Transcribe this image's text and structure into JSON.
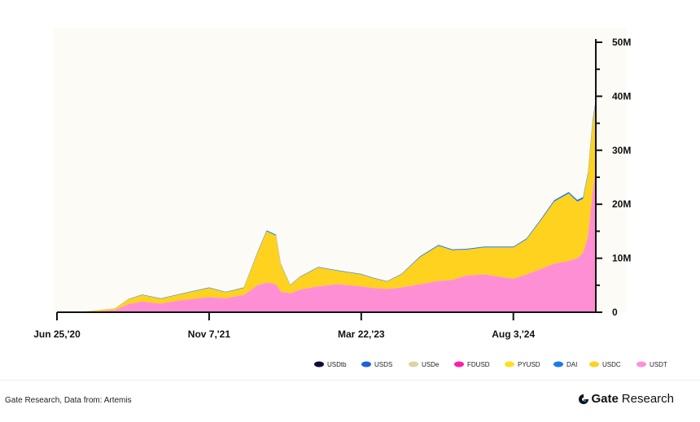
{
  "chart_data": {
    "type": "area",
    "stacked": true,
    "x_ticks": [
      "Jun 25,'20",
      "Nov 7,'21",
      "Mar 22,'23",
      "Aug 3,'24"
    ],
    "x_range": [
      "2020-06-25",
      "2025-05-01"
    ],
    "y_ticks": [
      "0",
      "10M",
      "20M",
      "30M",
      "40M",
      "50M"
    ],
    "ylim": [
      0,
      50000000
    ],
    "y_axis_side": "right",
    "grid": false,
    "legend_position": "bottom-right",
    "legend": [
      {
        "name": "USDtb",
        "color": "#0e0b3d"
      },
      {
        "name": "USDS",
        "color": "#1e63d6"
      },
      {
        "name": "USDe",
        "color": "#d9d3a8"
      },
      {
        "name": "FDUSD",
        "color": "#ff1fa8"
      },
      {
        "name": "PYUSD",
        "color": "#ffe01a"
      },
      {
        "name": "DAI",
        "color": "#1b7ae6"
      },
      {
        "name": "USDC",
        "color": "#ffd21f"
      },
      {
        "name": "USDT",
        "color": "#ff8fd4"
      }
    ],
    "x": [
      "2020-06-25",
      "2020-10-01",
      "2021-01-01",
      "2021-02-15",
      "2021-04-01",
      "2021-06-01",
      "2021-08-01",
      "2021-11-07",
      "2022-01-01",
      "2022-03-01",
      "2022-04-15",
      "2022-05-15",
      "2022-06-15",
      "2022-07-01",
      "2022-08-01",
      "2022-09-01",
      "2022-11-01",
      "2023-01-01",
      "2023-03-22",
      "2023-05-01",
      "2023-06-15",
      "2023-08-01",
      "2023-10-01",
      "2023-12-01",
      "2024-01-15",
      "2024-03-01",
      "2024-05-01",
      "2024-08-03",
      "2024-09-15",
      "2024-11-01",
      "2024-12-15",
      "2025-02-01",
      "2025-03-01",
      "2025-03-20",
      "2025-04-05",
      "2025-04-20",
      "2025-05-01"
    ],
    "series": [
      {
        "name": "USDT",
        "color": "#ff8fd4",
        "values": [
          0,
          50000,
          400000,
          1500000,
          2000000,
          1600000,
          2200000,
          2800000,
          2600000,
          3200000,
          5000000,
          5500000,
          5200000,
          3800000,
          3500000,
          4200000,
          4800000,
          5200000,
          4800000,
          4500000,
          4300000,
          4600000,
          5200000,
          5800000,
          6000000,
          6800000,
          7000000,
          6200000,
          7000000,
          8000000,
          9000000,
          9500000,
          10000000,
          11000000,
          14000000,
          22000000,
          27000000
        ]
      },
      {
        "name": "USDC",
        "color": "#ffd21f",
        "values": [
          0,
          100000,
          300000,
          900000,
          1200000,
          900000,
          1100000,
          1700000,
          1100000,
          1300000,
          6000000,
          9500000,
          9000000,
          5000000,
          1500000,
          2300000,
          3500000,
          2500000,
          2200000,
          1800000,
          1400000,
          2400000,
          5000000,
          6500000,
          5500000,
          4800000,
          5000000,
          5800000,
          6500000,
          9000000,
          11500000,
          12500000,
          10500000,
          10000000,
          11500000,
          13000000,
          12000000
        ]
      },
      {
        "name": "DAI",
        "color": "#1b7ae6",
        "values": [
          0,
          10000,
          30000,
          60000,
          80000,
          70000,
          80000,
          100000,
          80000,
          90000,
          150000,
          180000,
          170000,
          120000,
          80000,
          90000,
          110000,
          100000,
          90000,
          80000,
          70000,
          90000,
          150000,
          180000,
          160000,
          150000,
          150000,
          160000,
          180000,
          220000,
          260000,
          280000,
          300000,
          320000,
          380000,
          450000,
          480000
        ]
      }
    ]
  },
  "legend_labels": [
    "USDtb",
    "USDS",
    "USDe",
    "FDUSD",
    "PYUSD",
    "DAI",
    "USDC",
    "USDT"
  ],
  "footer": {
    "source": "Gate Research, Data from: Artemis",
    "brand_bold": "Gate",
    "brand_light": "Research"
  }
}
